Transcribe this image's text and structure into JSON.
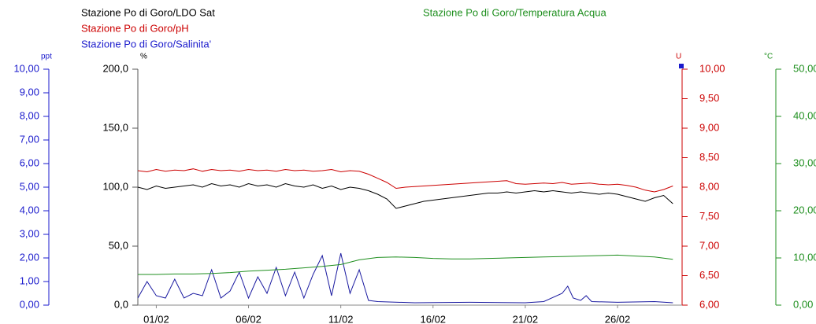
{
  "chart_data": {
    "type": "line",
    "titles": [
      {
        "text": "Stazione Po di Goro/LDO Sat",
        "color": "#000000"
      },
      {
        "text": "Stazione Po di Goro/pH",
        "color": "#cc0000"
      },
      {
        "text": "Stazione Po di Goro/Salinita'",
        "color": "#1a1acc"
      },
      {
        "text": "Stazione Po di Goro/Temperatura Acqua",
        "color": "#1f8f1f"
      }
    ],
    "xlim": [
      0,
      29.5
    ],
    "xticks": [
      {
        "value": 1,
        "label": "01/02"
      },
      {
        "value": 6,
        "label": "06/02"
      },
      {
        "value": 11,
        "label": "11/02"
      },
      {
        "value": 16,
        "label": "16/02"
      },
      {
        "value": 21,
        "label": "21/02"
      },
      {
        "value": 26,
        "label": "26/02"
      }
    ],
    "ylabel": "%",
    "ylim": [
      0,
      200
    ],
    "yticks": [
      {
        "value": 0,
        "label": "0,0"
      },
      {
        "value": 50,
        "label": "50,0"
      },
      {
        "value": 100,
        "label": "100,0"
      },
      {
        "value": 150,
        "label": "150,0"
      },
      {
        "value": 200,
        "label": "200,0"
      }
    ],
    "y2label": "U",
    "y2lim": [
      6,
      10
    ],
    "y2ticks": [
      {
        "value": 6,
        "label": "6,00"
      },
      {
        "value": 6.5,
        "label": "6,50"
      },
      {
        "value": 7,
        "label": "7,00"
      },
      {
        "value": 7.5,
        "label": "7,50"
      },
      {
        "value": 8,
        "label": "8,00"
      },
      {
        "value": 8.5,
        "label": "8,50"
      },
      {
        "value": 9,
        "label": "9,00"
      },
      {
        "value": 9.5,
        "label": "9,50"
      },
      {
        "value": 10,
        "label": "10,00"
      }
    ],
    "y3label": "ppt",
    "y3lim": [
      0,
      10
    ],
    "y3ticks": [
      {
        "value": 0,
        "label": "0,00"
      },
      {
        "value": 1,
        "label": "1,00"
      },
      {
        "value": 2,
        "label": "2,00"
      },
      {
        "value": 3,
        "label": "3,00"
      },
      {
        "value": 4,
        "label": "4,00"
      },
      {
        "value": 5,
        "label": "5,00"
      },
      {
        "value": 6,
        "label": "6,00"
      },
      {
        "value": 7,
        "label": "7,00"
      },
      {
        "value": 8,
        "label": "8,00"
      },
      {
        "value": 9,
        "label": "9,00"
      },
      {
        "value": 10,
        "label": "10,00"
      }
    ],
    "y4label": "°C",
    "y4lim": [
      0,
      50
    ],
    "y4ticks": [
      {
        "value": 0,
        "label": "0,00"
      },
      {
        "value": 10,
        "label": "10,00"
      },
      {
        "value": 20,
        "label": "20,00"
      },
      {
        "value": 30,
        "label": "30,00"
      },
      {
        "value": 40,
        "label": "40,00"
      },
      {
        "value": 50,
        "label": "50,00"
      }
    ],
    "series": [
      {
        "name": "LDO Sat",
        "color": "#000000",
        "axis": "y",
        "x": [
          0,
          0.5,
          1,
          1.5,
          2,
          2.5,
          3,
          3.5,
          4,
          4.5,
          5,
          5.5,
          6,
          6.5,
          7,
          7.5,
          8,
          8.5,
          9,
          9.5,
          10,
          10.5,
          11,
          11.5,
          12,
          12.5,
          13,
          13.5,
          14,
          14.5,
          15,
          15.5,
          16,
          16.5,
          17,
          17.5,
          18,
          18.5,
          19,
          19.5,
          20,
          20.5,
          21,
          21.5,
          22,
          22.5,
          23,
          23.5,
          24,
          24.5,
          25,
          25.5,
          26,
          26.5,
          27,
          27.5,
          28,
          28.5,
          29
        ],
        "values": [
          100,
          98,
          101,
          99,
          100,
          101,
          102,
          100,
          103,
          101,
          102,
          100,
          103,
          101,
          102,
          100,
          103,
          101,
          100,
          102,
          99,
          101,
          98,
          100,
          99,
          97,
          94,
          90,
          82,
          84,
          86,
          88,
          89,
          90,
          91,
          92,
          93,
          94,
          95,
          95,
          96,
          95,
          96,
          97,
          96,
          97,
          96,
          95,
          96,
          95,
          94,
          95,
          94,
          92,
          90,
          88,
          91,
          93,
          86
        ]
      },
      {
        "name": "pH",
        "color": "#cc0000",
        "axis": "y2",
        "x": [
          0,
          0.5,
          1,
          1.5,
          2,
          2.5,
          3,
          3.5,
          4,
          4.5,
          5,
          5.5,
          6,
          6.5,
          7,
          7.5,
          8,
          8.5,
          9,
          9.5,
          10,
          10.5,
          11,
          11.5,
          12,
          12.5,
          13,
          13.5,
          14,
          14.5,
          15,
          15.5,
          16,
          16.5,
          17,
          17.5,
          18,
          18.5,
          19,
          19.5,
          20,
          20.5,
          21,
          21.5,
          22,
          22.5,
          23,
          23.5,
          24,
          24.5,
          25,
          25.5,
          26,
          26.5,
          27,
          27.5,
          28,
          28.5,
          29
        ],
        "values": [
          8.28,
          8.26,
          8.3,
          8.27,
          8.29,
          8.28,
          8.31,
          8.27,
          8.3,
          8.28,
          8.29,
          8.27,
          8.3,
          8.28,
          8.29,
          8.27,
          8.3,
          8.28,
          8.29,
          8.27,
          8.28,
          8.3,
          8.26,
          8.28,
          8.27,
          8.22,
          8.15,
          8.08,
          7.98,
          8.0,
          8.01,
          8.02,
          8.03,
          8.04,
          8.05,
          8.06,
          8.07,
          8.08,
          8.09,
          8.1,
          8.11,
          8.06,
          8.05,
          8.06,
          8.07,
          8.06,
          8.08,
          8.05,
          8.06,
          8.07,
          8.05,
          8.04,
          8.05,
          8.03,
          8.0,
          7.95,
          7.92,
          7.96,
          8.02
        ]
      },
      {
        "name": "Salinita'",
        "color": "#1a1aa0",
        "axis": "y3",
        "x": [
          0,
          0.5,
          1,
          1.5,
          2,
          2.5,
          3,
          3.5,
          4,
          4.5,
          5,
          5.5,
          6,
          6.5,
          7,
          7.5,
          8,
          8.5,
          9,
          9.5,
          10,
          10.5,
          11,
          11.5,
          12,
          12.5,
          13,
          15,
          18,
          21,
          22,
          23,
          23.3,
          23.6,
          24,
          24.3,
          24.6,
          26,
          28,
          29
        ],
        "values": [
          0.3,
          1.0,
          0.4,
          0.3,
          1.1,
          0.3,
          0.5,
          0.4,
          1.5,
          0.3,
          0.6,
          1.4,
          0.3,
          1.2,
          0.5,
          1.6,
          0.4,
          1.4,
          0.3,
          1.3,
          2.1,
          0.4,
          2.2,
          0.5,
          1.5,
          0.2,
          0.15,
          0.1,
          0.12,
          0.1,
          0.15,
          0.5,
          0.8,
          0.3,
          0.2,
          0.4,
          0.15,
          0.12,
          0.15,
          0.1
        ]
      },
      {
        "name": "Temperatura Acqua",
        "color": "#1f8f1f",
        "axis": "y4",
        "x": [
          0,
          1,
          2,
          3,
          4,
          5,
          6,
          7,
          8,
          9,
          10,
          11,
          12,
          13,
          14,
          15,
          16,
          17,
          18,
          19,
          20,
          21,
          22,
          23,
          24,
          25,
          26,
          27,
          28,
          29
        ],
        "values": [
          6.5,
          6.5,
          6.6,
          6.6,
          6.7,
          6.9,
          7.2,
          7.4,
          7.6,
          7.9,
          8.2,
          8.6,
          9.6,
          10.1,
          10.2,
          10.1,
          9.9,
          9.8,
          9.8,
          9.9,
          10.0,
          10.1,
          10.2,
          10.3,
          10.4,
          10.5,
          10.6,
          10.4,
          10.2,
          9.7
        ]
      }
    ]
  }
}
